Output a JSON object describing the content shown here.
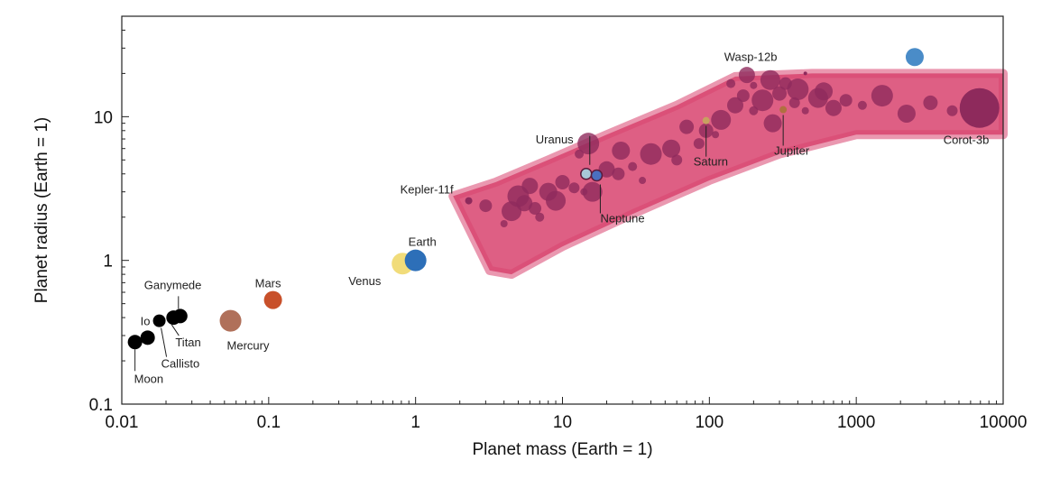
{
  "chart_data": {
    "type": "scatter",
    "title": "",
    "xlabel": "Planet mass (Earth = 1)",
    "ylabel": "Planet radius (Earth = 1)",
    "xscale": "log",
    "yscale": "log",
    "xlim": [
      0.01,
      10000
    ],
    "ylim": [
      0.1,
      50
    ],
    "x_ticks": [
      0.01,
      0.1,
      1,
      10,
      100,
      1000,
      10000
    ],
    "x_tick_labels": [
      "0.01",
      "0.1",
      "1",
      "10",
      "100",
      "1000",
      "10000"
    ],
    "y_ticks": [
      0.1,
      1,
      10
    ],
    "y_tick_labels": [
      "0.1",
      "1",
      "10"
    ],
    "grid": false,
    "band_color": "#d8436f",
    "exoplanet_color": "#8e2a5c",
    "named_bodies": [
      {
        "name": "Moon",
        "x": 0.0123,
        "y": 0.27,
        "color": "#000000"
      },
      {
        "name": "Io",
        "x": 0.015,
        "y": 0.29,
        "color": "#000000"
      },
      {
        "name": "Callisto",
        "x": 0.018,
        "y": 0.38,
        "color": "#000000"
      },
      {
        "name": "Titan",
        "x": 0.0225,
        "y": 0.4,
        "color": "#000000"
      },
      {
        "name": "Ganymede",
        "x": 0.025,
        "y": 0.41,
        "color": "#000000"
      },
      {
        "name": "Mercury",
        "x": 0.055,
        "y": 0.38,
        "color": "#b0705a"
      },
      {
        "name": "Mars",
        "x": 0.107,
        "y": 0.53,
        "color": "#c8502a"
      },
      {
        "name": "Venus",
        "x": 0.815,
        "y": 0.95,
        "color": "#f1dc7a"
      },
      {
        "name": "Earth",
        "x": 1.0,
        "y": 1.0,
        "color": "#2d6fb8"
      },
      {
        "name": "Kepler-11f",
        "x": 2.3,
        "y": 2.6,
        "color": "#8e2a5c"
      },
      {
        "name": "Uranus",
        "x": 14.5,
        "y": 4.0,
        "color": "#a8c8d8"
      },
      {
        "name": "Neptune",
        "x": 17.1,
        "y": 3.9,
        "color": "#4a6fc0"
      },
      {
        "name": "Saturn",
        "x": 95,
        "y": 9.4,
        "color": "#c8a060"
      },
      {
        "name": "Jupiter",
        "x": 318,
        "y": 11.2,
        "color": "#b07040"
      },
      {
        "name": "Wasp-12b",
        "x": 450,
        "y": 20.0,
        "color": "#8e2a5c"
      },
      {
        "name": "Corot-3b",
        "x": 6900,
        "y": 11.5,
        "color": "#8e2a5c"
      },
      {
        "name": "",
        "x": 2500,
        "y": 26.0,
        "color": "#4a8cc8"
      }
    ],
    "exoplanets": [
      {
        "x": 4.0,
        "y": 1.8
      },
      {
        "x": 4.5,
        "y": 2.2
      },
      {
        "x": 5.5,
        "y": 2.5
      },
      {
        "x": 6.5,
        "y": 2.3
      },
      {
        "x": 7.0,
        "y": 2.0
      },
      {
        "x": 5.0,
        "y": 2.8
      },
      {
        "x": 8.0,
        "y": 3.0
      },
      {
        "x": 10.0,
        "y": 3.5
      },
      {
        "x": 12.0,
        "y": 3.2
      },
      {
        "x": 14.0,
        "y": 3.0
      },
      {
        "x": 16.0,
        "y": 3.0
      },
      {
        "x": 20.0,
        "y": 4.3
      },
      {
        "x": 24.0,
        "y": 4.0
      },
      {
        "x": 30.0,
        "y": 4.5
      },
      {
        "x": 40.0,
        "y": 5.5
      },
      {
        "x": 55.0,
        "y": 6.0
      },
      {
        "x": 70.0,
        "y": 8.5
      },
      {
        "x": 85.0,
        "y": 6.5
      },
      {
        "x": 110.0,
        "y": 7.5
      },
      {
        "x": 120.0,
        "y": 9.5
      },
      {
        "x": 150.0,
        "y": 12.0
      },
      {
        "x": 170.0,
        "y": 14.0
      },
      {
        "x": 200.0,
        "y": 11.0
      },
      {
        "x": 230.0,
        "y": 13.0
      },
      {
        "x": 270.0,
        "y": 9.0
      },
      {
        "x": 300.0,
        "y": 14.5
      },
      {
        "x": 380.0,
        "y": 12.5
      },
      {
        "x": 450.0,
        "y": 11.0
      },
      {
        "x": 550.0,
        "y": 13.5
      },
      {
        "x": 700.0,
        "y": 11.5
      },
      {
        "x": 850.0,
        "y": 13.0
      },
      {
        "x": 1100.0,
        "y": 12.0
      },
      {
        "x": 1500.0,
        "y": 14.0
      },
      {
        "x": 2200.0,
        "y": 10.5
      },
      {
        "x": 3200.0,
        "y": 12.5
      },
      {
        "x": 4500.0,
        "y": 11.0
      },
      {
        "x": 200.0,
        "y": 16.5
      },
      {
        "x": 260.0,
        "y": 18.0
      },
      {
        "x": 180.0,
        "y": 19.5
      },
      {
        "x": 330.0,
        "y": 17.0
      },
      {
        "x": 140.0,
        "y": 17.0
      },
      {
        "x": 400.0,
        "y": 15.5
      },
      {
        "x": 600.0,
        "y": 15.0
      },
      {
        "x": 95.0,
        "y": 8.0
      },
      {
        "x": 60.0,
        "y": 5.0
      },
      {
        "x": 35.0,
        "y": 3.6
      },
      {
        "x": 9.0,
        "y": 2.6
      },
      {
        "x": 6.0,
        "y": 3.3
      },
      {
        "x": 3.0,
        "y": 2.4
      },
      {
        "x": 13.0,
        "y": 5.5
      },
      {
        "x": 15.0,
        "y": 6.5
      },
      {
        "x": 25.0,
        "y": 5.8
      }
    ]
  }
}
